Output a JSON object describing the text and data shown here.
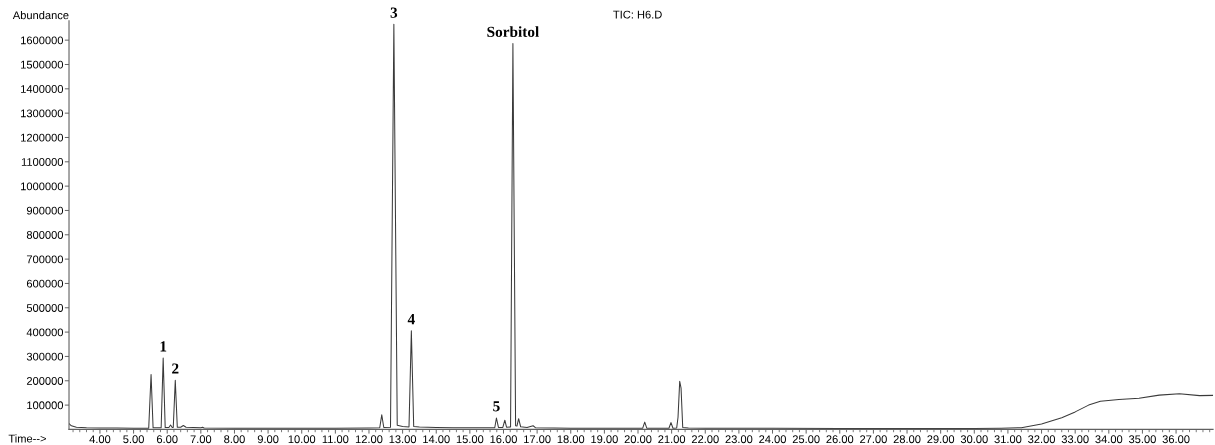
{
  "chart_data": {
    "type": "line",
    "title": "TIC: H6.D",
    "xlabel": "Time-->",
    "ylabel": "Abundance",
    "xlim": [
      3.08,
      37.1
    ],
    "ylim": [
      0,
      1680000
    ],
    "xticks": [
      {
        "value": 4,
        "label": "4.00"
      },
      {
        "value": 5,
        "label": "5.00"
      },
      {
        "value": 6,
        "label": "6.00"
      },
      {
        "value": 7,
        "label": "7.00"
      },
      {
        "value": 8,
        "label": "8.00"
      },
      {
        "value": 9,
        "label": "9.00"
      },
      {
        "value": 10,
        "label": "10.00"
      },
      {
        "value": 11,
        "label": "11.00"
      },
      {
        "value": 12,
        "label": "12.00"
      },
      {
        "value": 13,
        "label": "13.00"
      },
      {
        "value": 14,
        "label": "14.00"
      },
      {
        "value": 15,
        "label": "15.00"
      },
      {
        "value": 16,
        "label": "16.00"
      },
      {
        "value": 17,
        "label": "17.00"
      },
      {
        "value": 18,
        "label": "18.00"
      },
      {
        "value": 19,
        "label": "19.00"
      },
      {
        "value": 20,
        "label": "20.00"
      },
      {
        "value": 21,
        "label": "21.00"
      },
      {
        "value": 22,
        "label": "22.00"
      },
      {
        "value": 23,
        "label": "23.00"
      },
      {
        "value": 24,
        "label": "24.00"
      },
      {
        "value": 25,
        "label": "25.00"
      },
      {
        "value": 26,
        "label": "26.00"
      },
      {
        "value": 27,
        "label": "27.00"
      },
      {
        "value": 28,
        "label": "28.00"
      },
      {
        "value": 29,
        "label": "29.00"
      },
      {
        "value": 30,
        "label": "30.00"
      },
      {
        "value": 31,
        "label": "31.00"
      },
      {
        "value": 32,
        "label": "32.00"
      },
      {
        "value": 33,
        "label": "33.00"
      },
      {
        "value": 34,
        "label": "34.00"
      },
      {
        "value": 35,
        "label": "35.00"
      },
      {
        "value": 36,
        "label": "36.00"
      },
      {
        "value": 3.2,
        "label": null
      },
      {
        "value": 3.4,
        "label": null
      },
      {
        "value": 3.6,
        "label": null
      },
      {
        "value": 3.8,
        "label": null
      },
      {
        "value": 4.2,
        "label": null
      },
      {
        "value": 4.4,
        "label": null
      },
      {
        "value": 4.6,
        "label": null
      },
      {
        "value": 4.8,
        "label": null
      },
      {
        "value": 5.2,
        "label": null
      },
      {
        "value": 5.4,
        "label": null
      },
      {
        "value": 5.6,
        "label": null
      },
      {
        "value": 5.8,
        "label": null
      },
      {
        "value": 6.2,
        "label": null
      },
      {
        "value": 6.4,
        "label": null
      },
      {
        "value": 6.6,
        "label": null
      },
      {
        "value": 6.8,
        "label": null
      },
      {
        "value": 7.2,
        "label": null
      },
      {
        "value": 7.4,
        "label": null
      },
      {
        "value": 7.6,
        "label": null
      },
      {
        "value": 7.8,
        "label": null
      },
      {
        "value": 8.2,
        "label": null
      },
      {
        "value": 8.4,
        "label": null
      },
      {
        "value": 8.6,
        "label": null
      },
      {
        "value": 8.8,
        "label": null
      },
      {
        "value": 9.2,
        "label": null
      },
      {
        "value": 9.4,
        "label": null
      },
      {
        "value": 9.6,
        "label": null
      },
      {
        "value": 9.8,
        "label": null
      },
      {
        "value": 10.2,
        "label": null
      },
      {
        "value": 10.4,
        "label": null
      },
      {
        "value": 10.6,
        "label": null
      },
      {
        "value": 10.8,
        "label": null
      },
      {
        "value": 11.2,
        "label": null
      },
      {
        "value": 11.4,
        "label": null
      },
      {
        "value": 11.6,
        "label": null
      },
      {
        "value": 11.8,
        "label": null
      },
      {
        "value": 12.2,
        "label": null
      },
      {
        "value": 12.4,
        "label": null
      },
      {
        "value": 12.6,
        "label": null
      },
      {
        "value": 12.8,
        "label": null
      },
      {
        "value": 13.2,
        "label": null
      },
      {
        "value": 13.4,
        "label": null
      },
      {
        "value": 13.6,
        "label": null
      },
      {
        "value": 13.8,
        "label": null
      },
      {
        "value": 14.2,
        "label": null
      },
      {
        "value": 14.4,
        "label": null
      },
      {
        "value": 14.6,
        "label": null
      },
      {
        "value": 14.8,
        "label": null
      },
      {
        "value": 15.2,
        "label": null
      },
      {
        "value": 15.4,
        "label": null
      },
      {
        "value": 15.6,
        "label": null
      },
      {
        "value": 15.8,
        "label": null
      },
      {
        "value": 16.2,
        "label": null
      },
      {
        "value": 16.4,
        "label": null
      },
      {
        "value": 16.6,
        "label": null
      },
      {
        "value": 16.8,
        "label": null
      },
      {
        "value": 17.2,
        "label": null
      },
      {
        "value": 17.4,
        "label": null
      },
      {
        "value": 17.6,
        "label": null
      },
      {
        "value": 17.8,
        "label": null
      },
      {
        "value": 18.2,
        "label": null
      },
      {
        "value": 18.4,
        "label": null
      },
      {
        "value": 18.6,
        "label": null
      },
      {
        "value": 18.8,
        "label": null
      },
      {
        "value": 19.2,
        "label": null
      },
      {
        "value": 19.4,
        "label": null
      },
      {
        "value": 19.6,
        "label": null
      },
      {
        "value": 19.8,
        "label": null
      },
      {
        "value": 20.2,
        "label": null
      },
      {
        "value": 20.4,
        "label": null
      },
      {
        "value": 20.6,
        "label": null
      },
      {
        "value": 20.8,
        "label": null
      },
      {
        "value": 21.2,
        "label": null
      },
      {
        "value": 21.4,
        "label": null
      },
      {
        "value": 21.6,
        "label": null
      },
      {
        "value": 21.8,
        "label": null
      },
      {
        "value": 22.2,
        "label": null
      },
      {
        "value": 22.4,
        "label": null
      },
      {
        "value": 22.6,
        "label": null
      },
      {
        "value": 22.8,
        "label": null
      },
      {
        "value": 23.2,
        "label": null
      },
      {
        "value": 23.4,
        "label": null
      },
      {
        "value": 23.6,
        "label": null
      },
      {
        "value": 23.8,
        "label": null
      },
      {
        "value": 24.2,
        "label": null
      },
      {
        "value": 24.4,
        "label": null
      },
      {
        "value": 24.6,
        "label": null
      },
      {
        "value": 24.8,
        "label": null
      },
      {
        "value": 25.2,
        "label": null
      },
      {
        "value": 25.4,
        "label": null
      },
      {
        "value": 25.6,
        "label": null
      },
      {
        "value": 25.8,
        "label": null
      },
      {
        "value": 26.2,
        "label": null
      },
      {
        "value": 26.4,
        "label": null
      },
      {
        "value": 26.6,
        "label": null
      },
      {
        "value": 26.8,
        "label": null
      },
      {
        "value": 27.2,
        "label": null
      },
      {
        "value": 27.4,
        "label": null
      },
      {
        "value": 27.6,
        "label": null
      },
      {
        "value": 27.8,
        "label": null
      },
      {
        "value": 28.2,
        "label": null
      },
      {
        "value": 28.4,
        "label": null
      },
      {
        "value": 28.6,
        "label": null
      },
      {
        "value": 28.8,
        "label": null
      },
      {
        "value": 29.2,
        "label": null
      },
      {
        "value": 29.4,
        "label": null
      },
      {
        "value": 29.6,
        "label": null
      },
      {
        "value": 29.8,
        "label": null
      },
      {
        "value": 30.2,
        "label": null
      },
      {
        "value": 30.4,
        "label": null
      },
      {
        "value": 30.6,
        "label": null
      },
      {
        "value": 30.8,
        "label": null
      },
      {
        "value": 31.2,
        "label": null
      },
      {
        "value": 31.4,
        "label": null
      },
      {
        "value": 31.6,
        "label": null
      },
      {
        "value": 31.8,
        "label": null
      },
      {
        "value": 32.2,
        "label": null
      },
      {
        "value": 32.4,
        "label": null
      },
      {
        "value": 32.6,
        "label": null
      },
      {
        "value": 32.8,
        "label": null
      },
      {
        "value": 33.2,
        "label": null
      },
      {
        "value": 33.4,
        "label": null
      },
      {
        "value": 33.6,
        "label": null
      },
      {
        "value": 33.8,
        "label": null
      },
      {
        "value": 34.2,
        "label": null
      },
      {
        "value": 34.4,
        "label": null
      },
      {
        "value": 34.6,
        "label": null
      },
      {
        "value": 34.8,
        "label": null
      },
      {
        "value": 35.2,
        "label": null
      },
      {
        "value": 35.4,
        "label": null
      },
      {
        "value": 35.6,
        "label": null
      },
      {
        "value": 35.8,
        "label": null
      },
      {
        "value": 36.2,
        "label": null
      },
      {
        "value": 36.4,
        "label": null
      },
      {
        "value": 36.6,
        "label": null
      },
      {
        "value": 36.8,
        "label": null
      },
      {
        "value": 37,
        "label": null
      }
    ],
    "yticks": [
      100000,
      200000,
      300000,
      400000,
      500000,
      600000,
      700000,
      800000,
      900000,
      1000000,
      1100000,
      1200000,
      1300000,
      1400000,
      1500000,
      1600000
    ],
    "series": [
      {
        "color": "#3a3a3a",
        "x": [
          3.08,
          3.15,
          3.3,
          3.6,
          4.0,
          4.5,
          5.0,
          5.45,
          5.52,
          5.58,
          5.82,
          5.88,
          5.94,
          6.05,
          6.1,
          6.15,
          6.18,
          6.24,
          6.3,
          6.4,
          6.48,
          6.56,
          7.0,
          7.05,
          7.1,
          8.0,
          9.0,
          10.0,
          11.0,
          12.0,
          12.32,
          12.38,
          12.44,
          12.64,
          12.74,
          12.84,
          13.0,
          13.19,
          13.26,
          13.33,
          13.5,
          14.0,
          14.5,
          15.0,
          15.5,
          15.74,
          15.79,
          15.85,
          15.98,
          16.04,
          16.09,
          16.21,
          16.28,
          16.36,
          16.4,
          16.45,
          16.51,
          16.7,
          16.88,
          16.95,
          17.5,
          18.0,
          19.0,
          20.0,
          20.14,
          20.2,
          20.26,
          20.92,
          20.98,
          21.04,
          21.15,
          21.19,
          21.24,
          21.28,
          21.33,
          21.5,
          22.0,
          24.0,
          26.0,
          28.0,
          30.0,
          30.8,
          31.4,
          32.0,
          32.6,
          33.0,
          33.4,
          33.75,
          34.3,
          34.9,
          35.5,
          36.1,
          36.7,
          37.1
        ],
        "values": [
          24000,
          15000,
          9000,
          7000,
          6000,
          6000,
          5000,
          5000,
          226000,
          7000,
          7000,
          293000,
          8000,
          8000,
          18000,
          8000,
          8000,
          202000,
          9000,
          9000,
          16000,
          9000,
          7000,
          9000,
          6000,
          5000,
          5000,
          5000,
          5000,
          6000,
          7000,
          60000,
          8000,
          9000,
          1665000,
          17000,
          12000,
          10000,
          405000,
          12000,
          10000,
          8000,
          7000,
          7000,
          7000,
          7000,
          47000,
          8000,
          8000,
          38000,
          9000,
          10000,
          1586000,
          15000,
          14000,
          44000,
          11000,
          8000,
          15000,
          7000,
          6000,
          5000,
          5000,
          5000,
          5000,
          30000,
          5000,
          5000,
          28000,
          5000,
          6000,
          50000,
          198000,
          170000,
          8000,
          6000,
          5000,
          5000,
          4000,
          4000,
          4000,
          5000,
          7000,
          22000,
          48000,
          72000,
          100000,
          116000,
          123000,
          128000,
          141000,
          147000,
          139000,
          140000
        ]
      }
    ],
    "annotations": [
      {
        "text": "1",
        "x": 5.88,
        "y": 293000
      },
      {
        "text": "2",
        "x": 6.24,
        "y": 202000
      },
      {
        "text": "3",
        "x": 12.74,
        "y": 1665000
      },
      {
        "text": "4",
        "x": 13.26,
        "y": 405000
      },
      {
        "text": "5",
        "x": 15.79,
        "y": 47000
      },
      {
        "text": "Sorbitol",
        "x": 16.28,
        "y": 1586000
      }
    ]
  }
}
